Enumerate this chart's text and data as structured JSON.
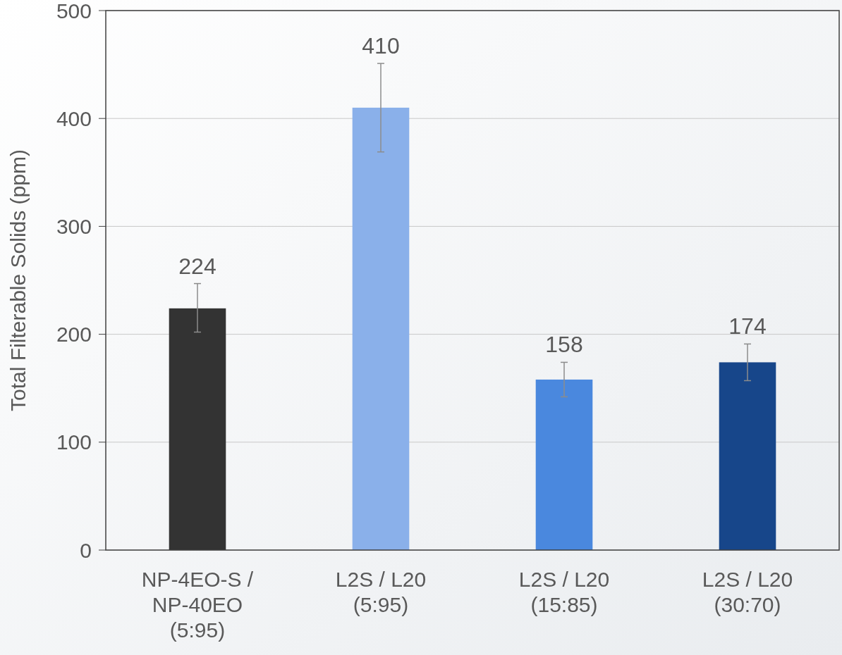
{
  "chart_data": {
    "type": "bar",
    "ylabel": "Total Filterable Solids (ppm)",
    "categories": [
      "NP-4EO-S / NP-40EO (5:95)",
      "L2S / L20 (5:95)",
      "L2S / L20 (15:85)",
      "L2S / L20 (30:70)"
    ],
    "values": [
      224,
      410,
      158,
      174
    ],
    "colors": [
      "#333333",
      "#8ab0ea",
      "#4a88de",
      "#17468a"
    ],
    "errors": [
      [
        202,
        247
      ],
      [
        369,
        451
      ],
      [
        142,
        174
      ],
      [
        157,
        191
      ]
    ],
    "ylim": [
      0,
      500
    ],
    "yticks": [
      0,
      100,
      200,
      300,
      400,
      500
    ],
    "grid": "y",
    "data_labels": true
  }
}
